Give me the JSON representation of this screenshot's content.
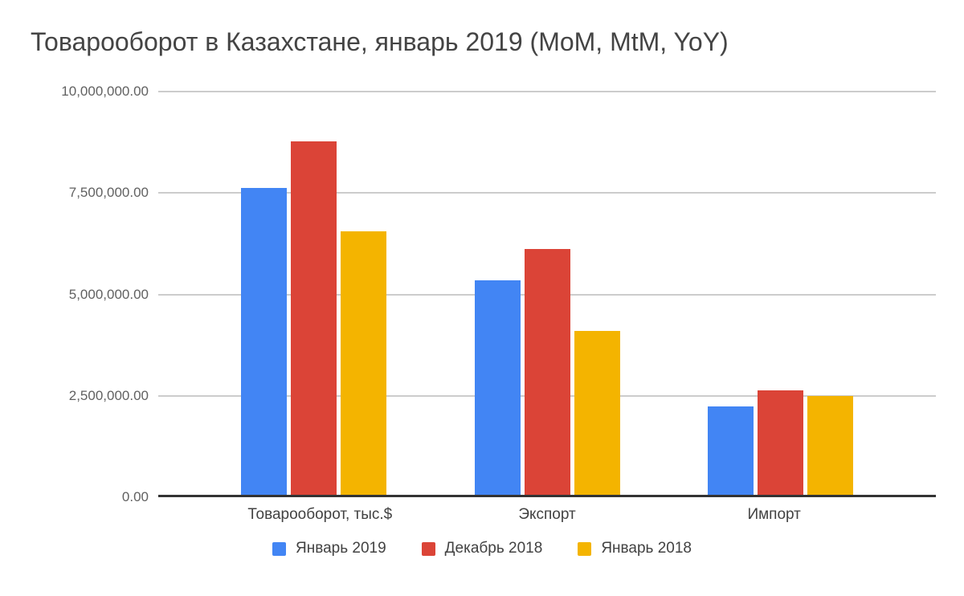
{
  "title": "Товарооборот в Казахстане, январь 2019 (MoM, MtM, YoY)",
  "chart_data": {
    "type": "bar",
    "title": "Товарооборот в Казахстане, январь 2019 (MoM, MtM, YoY)",
    "categories": [
      "Товарооборот, тыс.$",
      "Экспорт",
      "Импорт"
    ],
    "series": [
      {
        "name": "Январь 2019",
        "color": "#4285F4",
        "values": [
          7620000,
          5350000,
          2240000
        ]
      },
      {
        "name": "Декабрь 2018",
        "color": "#DB4437",
        "values": [
          8770000,
          6120000,
          2630000
        ]
      },
      {
        "name": "Январь 2018",
        "color": "#F4B400",
        "values": [
          6560000,
          4100000,
          2490000
        ]
      }
    ],
    "xlabel": "",
    "ylabel": "",
    "ylim": [
      0,
      10000000
    ],
    "yticks": [
      {
        "value": 0,
        "label": "0.00"
      },
      {
        "value": 2500000,
        "label": "2,500,000.00"
      },
      {
        "value": 5000000,
        "label": "5,000,000.00"
      },
      {
        "value": 7500000,
        "label": "7,500,000.00"
      },
      {
        "value": 10000000,
        "label": "10,000,000.00"
      }
    ],
    "grid": true,
    "legend_position": "bottom"
  },
  "colors": {
    "background": "#ffffff",
    "gridline": "#cccccc",
    "axis_baseline": "#333333",
    "title_text": "#444444",
    "tick_text": "#616161",
    "label_text": "#424242"
  }
}
